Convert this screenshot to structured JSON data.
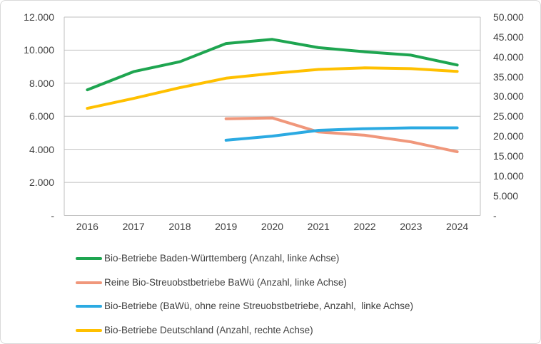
{
  "chart_data": {
    "type": "line",
    "categories": [
      "2016",
      "2017",
      "2018",
      "2019",
      "2020",
      "2021",
      "2022",
      "2023",
      "2024"
    ],
    "series": [
      {
        "name": "Bio-Betriebe Baden-Württemberg",
        "legend": "Bio-Betriebe Baden-Württemberg (Anzahl, linke Achse)",
        "axis": "left",
        "color": "#1EA550",
        "values": [
          7600,
          8700,
          9300,
          10400,
          10650,
          10150,
          9900,
          9700,
          9100
        ]
      },
      {
        "name": "Reine Bio-Streuobstbetriebe BaWü",
        "legend": "Reine Bio-Streuobstbetriebe BaWü (Anzahl, linke Achse)",
        "axis": "left",
        "color": "#F0977B",
        "values": [
          null,
          null,
          null,
          5850,
          5900,
          5050,
          4850,
          4450,
          3850
        ]
      },
      {
        "name": "Bio-Betriebe BaWü ohne reine Streuobstbetriebe",
        "legend": "Bio-Betriebe (BaWü, ohne reine Streuobstbetriebe, Anzahl,  linke Achse)",
        "axis": "left",
        "color": "#2BAAE2",
        "values": [
          null,
          null,
          null,
          4550,
          4800,
          5150,
          5250,
          5300,
          5300
        ]
      },
      {
        "name": "Bio-Betriebe Deutschland",
        "legend": "Bio-Betriebe Deutschland (Anzahl, rechte Achse)",
        "axis": "right",
        "color": "#FFC000",
        "values": [
          27000,
          29500,
          32200,
          34600,
          35800,
          36800,
          37200,
          37000,
          36300
        ]
      }
    ],
    "left_axis": {
      "min": 0,
      "max": 12000,
      "tick_labels": [
        "12.000",
        "10.000",
        "8.000",
        "6.000",
        "4.000",
        "2.000",
        "-"
      ]
    },
    "right_axis": {
      "min": 0,
      "max": 50000,
      "tick_labels": [
        "50.000",
        "45.000",
        "40.000",
        "35.000",
        "30.000",
        "25.000",
        "20.000",
        "15.000",
        "10.000",
        "5.000",
        "-"
      ]
    },
    "grid": "horizontal",
    "legend_position": "bottom-left",
    "title": "",
    "xlabel": "",
    "ylabel": ""
  },
  "colors": {
    "gridline": "#BFBFBF",
    "axis_text": "#404040",
    "card_border": "#D9D9D9",
    "background": "#FFFFFF"
  }
}
